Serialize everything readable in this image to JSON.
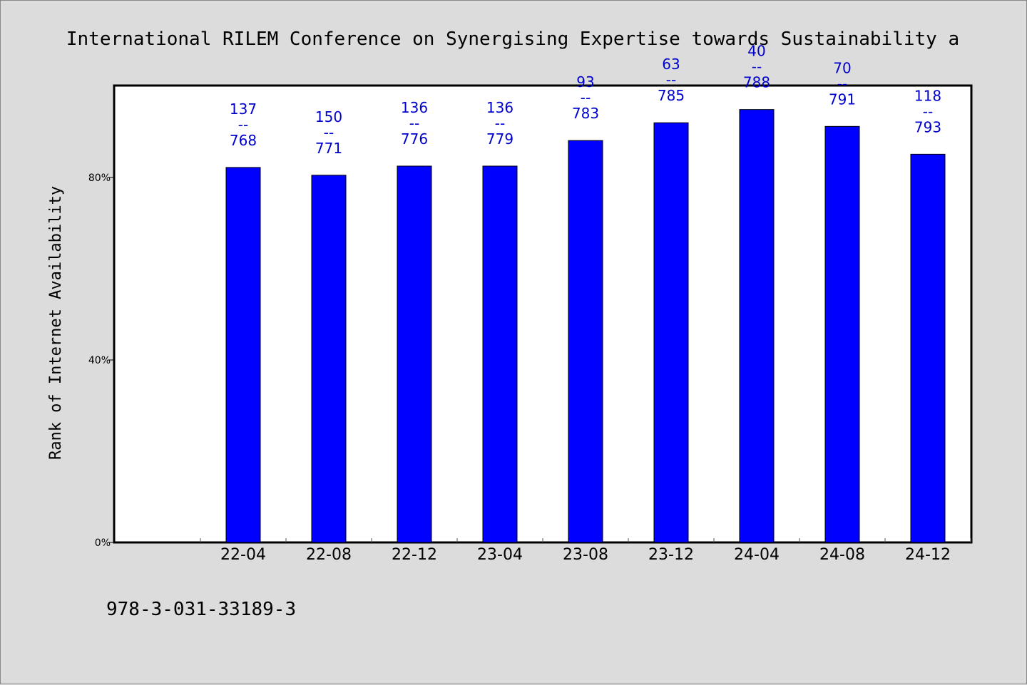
{
  "chart_data": {
    "type": "bar",
    "title": "International RILEM Conference on Synergising Expertise towards Sustainability a",
    "xlabel": "",
    "ylabel": "Rank of Internet Availability",
    "ylim": [
      0,
      100
    ],
    "yticks": [
      0,
      40,
      80
    ],
    "ytick_labels": [
      "0%",
      "40%",
      "80%"
    ],
    "grid": false,
    "legend": "none",
    "bar_color": "#0000ff",
    "label_color": "#0000cc",
    "categories": [
      "22-04",
      "22-08",
      "22-12",
      "23-04",
      "23-08",
      "23-12",
      "24-04",
      "24-08",
      "24-12"
    ],
    "values": [
      82.2,
      80.5,
      82.5,
      82.5,
      88.1,
      92.0,
      94.9,
      91.2,
      85.1
    ],
    "bar_labels": [
      {
        "rank": "137",
        "sep": "--",
        "total": "768"
      },
      {
        "rank": "150",
        "sep": "--",
        "total": "771"
      },
      {
        "rank": "136",
        "sep": "--",
        "total": "776"
      },
      {
        "rank": "136",
        "sep": "--",
        "total": "779"
      },
      {
        "rank": "93",
        "sep": "--",
        "total": "783"
      },
      {
        "rank": "63",
        "sep": "--",
        "total": "785"
      },
      {
        "rank": "40",
        "sep": "--",
        "total": "788"
      },
      {
        "rank": "70",
        "sep": "--",
        "total": "791"
      },
      {
        "rank": "118",
        "sep": "--",
        "total": "793"
      }
    ]
  },
  "footer": {
    "isbn": "978-3-031-33189-3"
  }
}
